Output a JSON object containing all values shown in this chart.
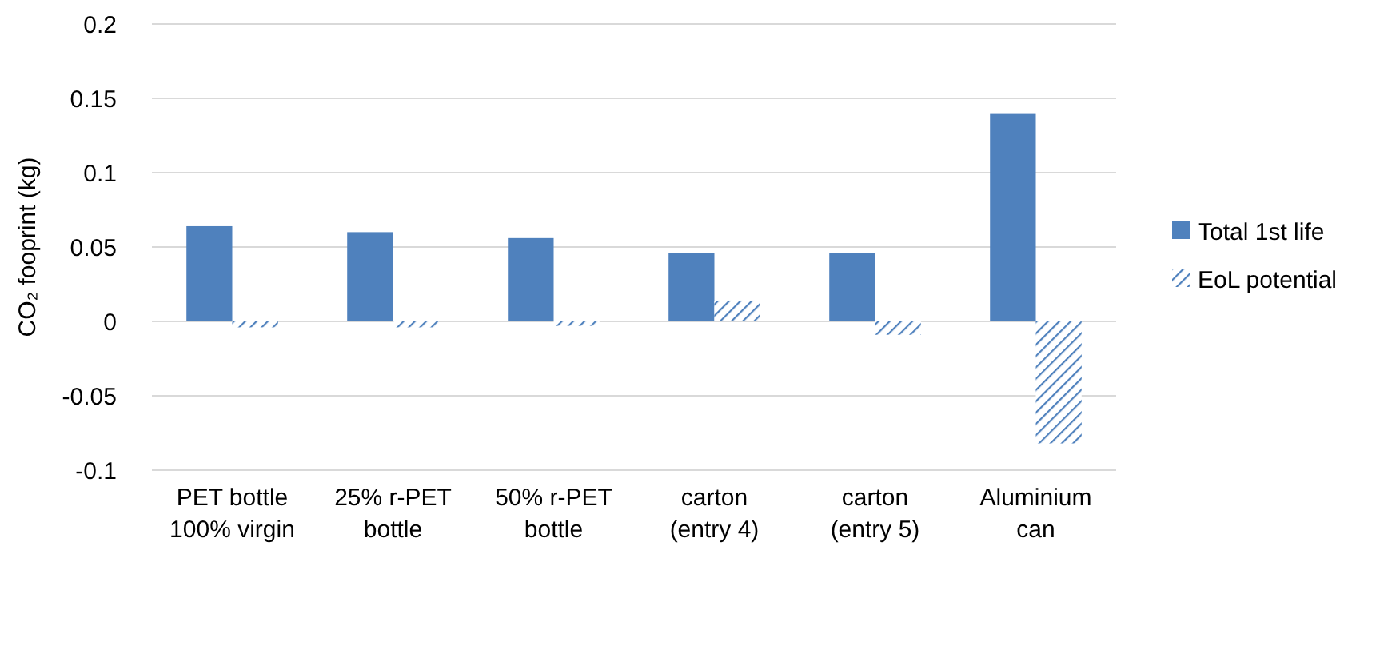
{
  "chart_data": {
    "type": "bar",
    "ylabel": "CO₂ fooprint (kg)",
    "categories": [
      "PET bottle 100% virgin",
      "25% r-PET bottle",
      "50% r-PET bottle",
      "carton (entry 4)",
      "carton (entry 5)",
      "Aluminium can"
    ],
    "series": [
      {
        "name": "Total 1st life",
        "color": "#4f81bd",
        "values": [
          0.064,
          0.06,
          0.056,
          0.046,
          0.046,
          0.14
        ]
      },
      {
        "name": "EoL potential",
        "color": "#4f81bd",
        "values": [
          -0.004,
          -0.004,
          -0.003,
          0.014,
          -0.009,
          -0.082
        ]
      }
    ],
    "ylim": [
      -0.1,
      0.2
    ],
    "yticks": [
      -0.1,
      -0.05,
      0,
      0.05,
      0.1,
      0.15,
      0.2
    ],
    "grid": "y",
    "legend": "right"
  }
}
